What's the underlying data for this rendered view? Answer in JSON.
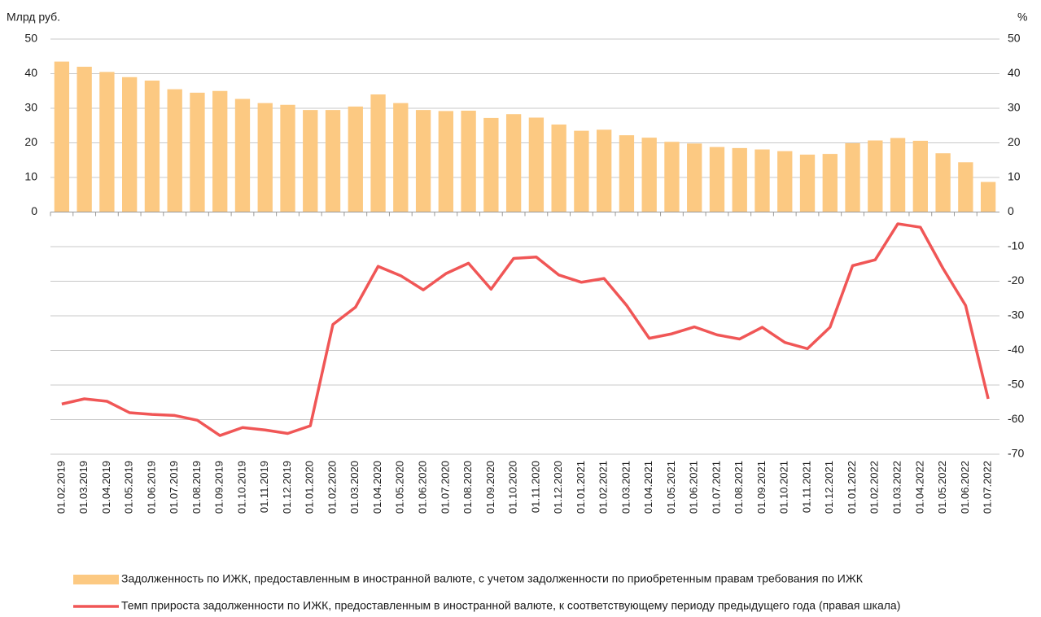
{
  "chart_data": {
    "type": "combo",
    "y_label": "Млрд руб.",
    "y2_label": "%",
    "categories": [
      "01.02.2019",
      "01.03.2019",
      "01.04.2019",
      "01.05.2019",
      "01.06.2019",
      "01.07.2019",
      "01.08.2019",
      "01.09.2019",
      "01.10.2019",
      "01.11.2019",
      "01.12.2019",
      "01.01.2020",
      "01.02.2020",
      "01.03.2020",
      "01.04.2020",
      "01.05.2020",
      "01.06.2020",
      "01.07.2020",
      "01.08.2020",
      "01.09.2020",
      "01.10.2020",
      "01.11.2020",
      "01.12.2020",
      "01.01.2021",
      "01.02.2021",
      "01.03.2021",
      "01.04.2021",
      "01.05.2021",
      "01.06.2021",
      "01.07.2021",
      "01.08.2021",
      "01.09.2021",
      "01.10.2021",
      "01.11.2021",
      "01.12.2021",
      "01.01.2022",
      "01.02.2022",
      "01.03.2022",
      "01.04.2022",
      "01.05.2022",
      "01.06.2022",
      "01.07.2022"
    ],
    "series": [
      {
        "name": "Задолженность по ИЖК, предоставленным в иностранной валюте, с учетом задолженности по приобретенным правам требования по ИЖК",
        "type": "bar",
        "color": "#fcc982",
        "values": [
          43.5,
          42,
          40.5,
          39,
          38,
          35.5,
          34.5,
          35,
          32.7,
          31.5,
          31,
          29.5,
          29.5,
          30.5,
          34,
          31.5,
          29.5,
          29.2,
          29.3,
          27.2,
          28.3,
          27.3,
          25.3,
          23.5,
          23.8,
          22.2,
          21.5,
          20.3,
          19.8,
          18.8,
          18.5,
          18.1,
          17.6,
          16.6,
          16.8,
          19.9,
          20.7,
          21.4,
          20.6,
          17,
          14.4,
          8.7
        ]
      },
      {
        "name": "Темп прироста задолженности по ИЖК, предоставленным в иностранной валюте, к соответствующему периоду предыдущего года (правая шкала)",
        "type": "line",
        "axis": "y2",
        "color": "#f05656",
        "values": [
          -55.5,
          -54,
          -54.7,
          -58,
          -58.5,
          -58.8,
          -60.2,
          -64.6,
          -62.3,
          -63,
          -64,
          -61.8,
          -32.5,
          -27.5,
          -15.7,
          -18.4,
          -22.5,
          -17.8,
          -14.8,
          -22.3,
          -13.4,
          -13,
          -18.2,
          -20.3,
          -19.2,
          -27,
          -36.5,
          -35.2,
          -33.2,
          -35.5,
          -36.7,
          -33.3,
          -37.7,
          -39.5,
          -33.3,
          -15.5,
          -13.8,
          -3.4,
          -4.4,
          -16.3,
          -27,
          -54
        ]
      }
    ],
    "ylim": [
      -70,
      50
    ],
    "yticks": [
      0,
      10,
      20,
      30,
      40,
      50
    ],
    "y2lim": [
      -70,
      50
    ],
    "y2ticks": [
      -70,
      -60,
      -50,
      -40,
      -30,
      -20,
      -10,
      0,
      10,
      20,
      30,
      40,
      50
    ],
    "grid": true
  }
}
